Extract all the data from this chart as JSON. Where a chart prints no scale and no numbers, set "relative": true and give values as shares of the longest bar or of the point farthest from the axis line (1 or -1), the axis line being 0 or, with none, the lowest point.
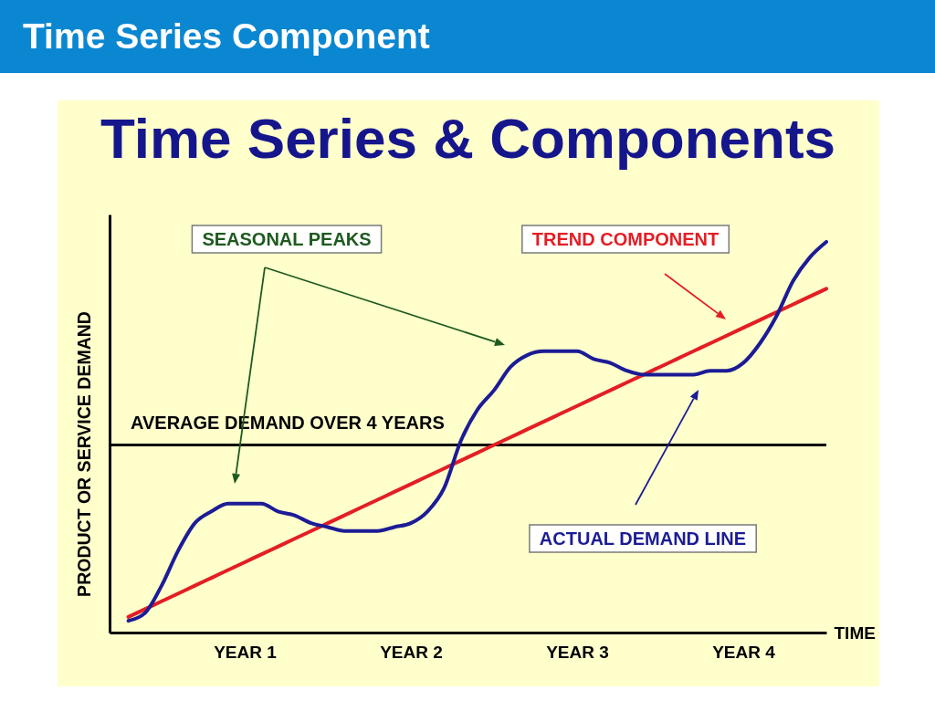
{
  "chart_data": {
    "type": "line",
    "title": "Time Series Component",
    "subtitle": "Time Series & Components",
    "xlabel": "TIME",
    "ylabel": "PRODUCT OR SERVICE DEMAND",
    "relative": true,
    "tick_labels": "x",
    "categories": [
      null,
      null,
      null,
      null,
      null,
      null,
      null,
      "YEAR 1",
      null,
      null,
      null,
      null,
      null,
      null,
      null,
      null,
      null,
      "YEAR 2",
      null,
      null,
      null,
      null,
      null,
      null,
      null,
      null,
      null,
      "YEAR 3",
      null,
      null,
      null,
      null,
      null,
      null,
      null,
      null,
      null,
      "YEAR 4",
      null,
      null,
      null,
      null,
      null
    ],
    "series": [
      {
        "name": "TREND COMPONENT",
        "color": "#e31e24",
        "values": [
          0.04,
          0.06,
          0.08,
          0.1,
          0.12,
          0.14,
          0.16,
          0.18,
          0.2,
          0.22,
          0.24,
          0.26,
          0.28,
          0.3,
          0.32,
          0.34,
          0.36,
          0.38,
          0.4,
          0.42,
          0.44,
          0.46,
          0.48,
          0.5,
          0.52,
          0.54,
          0.56,
          0.58,
          0.6,
          0.62,
          0.64,
          0.66,
          0.68,
          0.7,
          0.72,
          0.74,
          0.76,
          0.78,
          0.8,
          0.82,
          0.84,
          0.86,
          0.88
        ]
      },
      {
        "name": "ACTUAL DEMAND LINE",
        "color": "#1c1c96",
        "values": [
          0.03,
          0.05,
          0.12,
          0.21,
          0.28,
          0.31,
          0.33,
          0.33,
          0.33,
          0.31,
          0.3,
          0.28,
          0.27,
          0.26,
          0.26,
          0.26,
          0.27,
          0.28,
          0.31,
          0.37,
          0.49,
          0.57,
          0.62,
          0.68,
          0.71,
          0.72,
          0.72,
          0.72,
          0.7,
          0.69,
          0.67,
          0.66,
          0.66,
          0.66,
          0.66,
          0.67,
          0.67,
          0.69,
          0.74,
          0.81,
          0.9,
          0.96,
          1.0
        ]
      }
    ],
    "ref_lines": [
      {
        "axis": "y",
        "value": 0.48,
        "label": "AVERAGE DEMAND OVER 4 YEARS",
        "color": "#000000"
      }
    ],
    "annotations": [
      "SEASONAL PEAKS"
    ]
  }
}
